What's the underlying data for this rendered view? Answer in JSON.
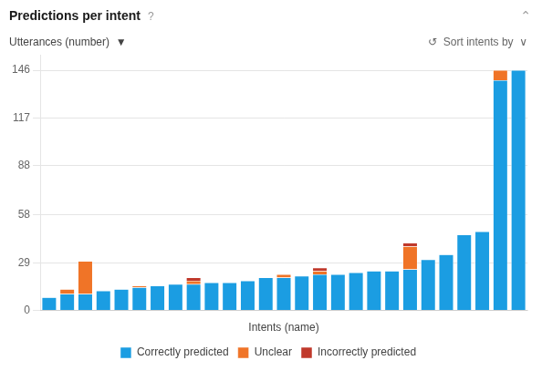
{
  "chart_data": {
    "type": "bar",
    "title": "Predictions per intent",
    "x_label": "Intents (name)",
    "y_label": "Utterances (number)  ▼",
    "annotations": [
      "?",
      "⌃",
      "↺  Sort intents by  ∨"
    ],
    "categories": [
      null,
      null,
      null,
      null,
      null,
      null,
      null,
      null,
      null,
      null,
      null,
      null,
      null,
      null,
      null,
      null,
      null,
      null,
      null,
      null,
      null,
      null,
      null,
      null,
      null,
      null,
      null
    ],
    "series": [
      {
        "name": "Correctly predicted",
        "color": "#1b9de2",
        "values": [
          8,
          10,
          10,
          12,
          13,
          14,
          15,
          16,
          16,
          17,
          17,
          18,
          20,
          20,
          21,
          22,
          22,
          23,
          24,
          24,
          25,
          31,
          34,
          46,
          48,
          140,
          146
        ]
      },
      {
        "name": "Unclear",
        "color": "#f07427",
        "values": [
          0,
          3,
          20,
          0,
          0,
          1,
          0,
          0,
          2,
          0,
          0,
          0,
          0,
          2,
          0,
          2,
          0,
          0,
          0,
          0,
          14,
          0,
          0,
          0,
          0,
          6,
          0
        ]
      },
      {
        "name": "Incorrectly predicted",
        "color": "#c0392b",
        "values": [
          0,
          0,
          0,
          0,
          0,
          0,
          0,
          0,
          2,
          0,
          0,
          0,
          0,
          0,
          0,
          2,
          0,
          0,
          0,
          0,
          2,
          0,
          0,
          0,
          0,
          0,
          0
        ]
      }
    ],
    "stacked": true,
    "ylim": [
      0,
      155
    ],
    "yticks": [
      0,
      29,
      58,
      88,
      117,
      146
    ],
    "grid": true,
    "legend": "bottom",
    "tick_labels": "y"
  }
}
